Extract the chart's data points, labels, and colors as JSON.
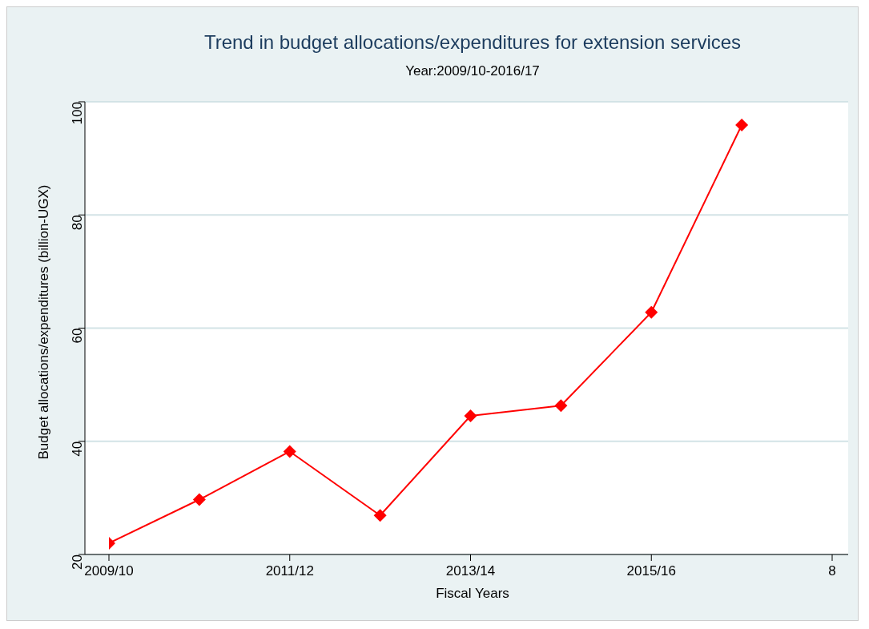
{
  "chart_data": {
    "type": "line",
    "title": "Trend in budget allocations/expenditures for extension services",
    "subtitle": "Year:2009/10-2016/17",
    "xlabel": "Fiscal Years",
    "ylabel": "Budget allocations/expenditures  (billion-UGX)",
    "categories": [
      "2009/10",
      null,
      "2011/12",
      null,
      "2013/14",
      null,
      "2015/16",
      null,
      "8"
    ],
    "series": [
      {
        "color": "#ff0000",
        "values": [
          22.0,
          29.7,
          38.2,
          26.9,
          44.5,
          46.3,
          62.8,
          95.9,
          null
        ]
      }
    ],
    "ylim": [
      20,
      100
    ],
    "yticks": [
      20,
      40,
      60,
      80,
      100
    ],
    "grid": "y",
    "marker": "diamond",
    "line_style": "solid"
  }
}
